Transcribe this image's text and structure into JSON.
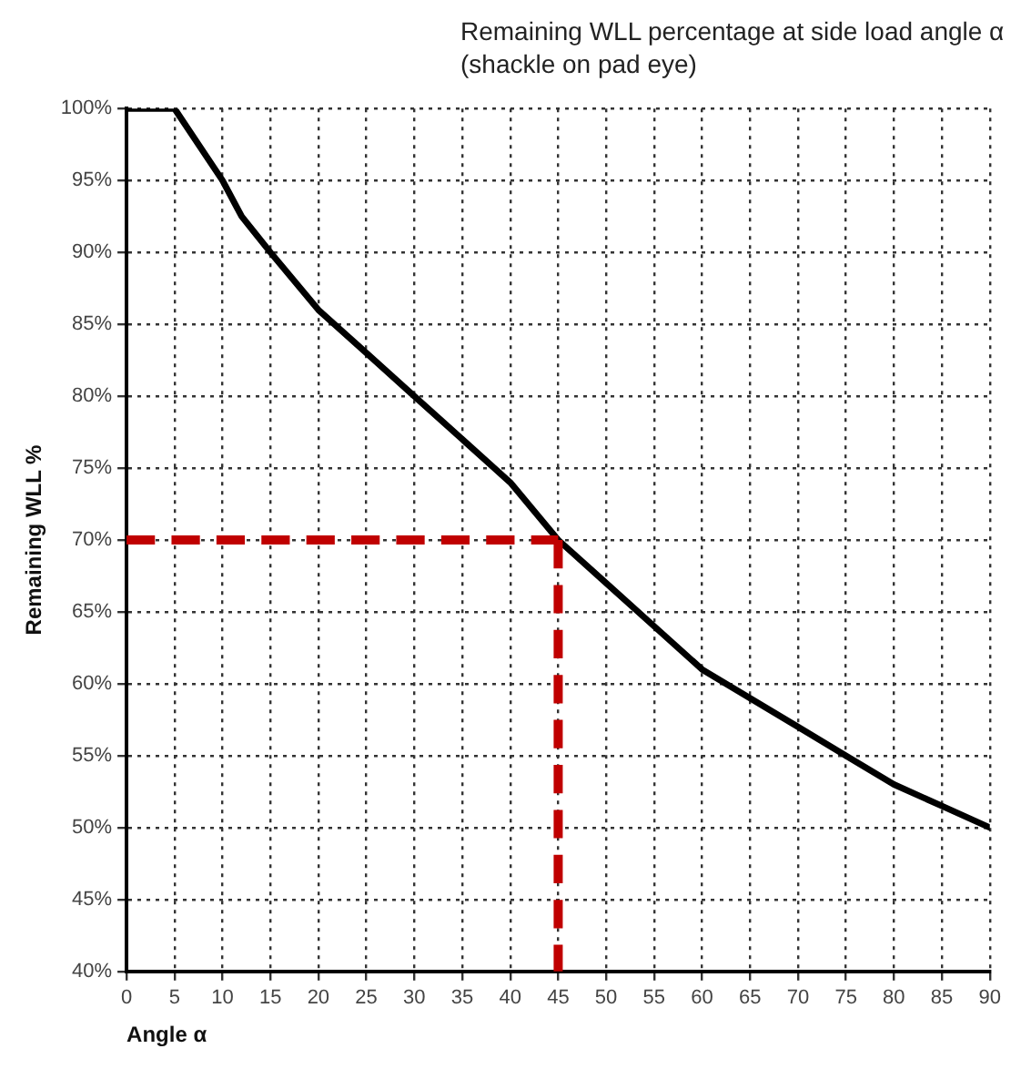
{
  "chart_data": {
    "type": "line",
    "title": "Remaining WLL percentage at side load angle α (shackle on pad eye)",
    "xlabel": "Angle α",
    "ylabel": "Remaining WLL %",
    "x": [
      0,
      5,
      10,
      12,
      15,
      20,
      25,
      30,
      35,
      40,
      45,
      50,
      55,
      60,
      65,
      70,
      75,
      80,
      85,
      90
    ],
    "series": [
      {
        "color": "#000000",
        "values": [
          100,
          100,
          95,
          92.5,
          90,
          86,
          83,
          80,
          77,
          74,
          70,
          67,
          64,
          61,
          59,
          57,
          55,
          53,
          51.5,
          50
        ]
      }
    ],
    "xlim": [
      0,
      90
    ],
    "xticks": [
      0,
      5,
      10,
      15,
      20,
      25,
      30,
      35,
      40,
      45,
      50,
      55,
      60,
      65,
      70,
      75,
      80,
      85,
      90
    ],
    "ylim": [
      40,
      100
    ],
    "yticks": [
      {
        "value": 40,
        "label": "40%"
      },
      {
        "value": 45,
        "label": "45%"
      },
      {
        "value": 50,
        "label": "50%"
      },
      {
        "value": 55,
        "label": "55%"
      },
      {
        "value": 60,
        "label": "60%"
      },
      {
        "value": 65,
        "label": "65%"
      },
      {
        "value": 70,
        "label": "70%"
      },
      {
        "value": 75,
        "label": "75%"
      },
      {
        "value": 80,
        "label": "80%"
      },
      {
        "value": 85,
        "label": "85%"
      },
      {
        "value": 90,
        "label": "90%"
      },
      {
        "value": 95,
        "label": "95%"
      },
      {
        "value": 100,
        "label": "100%"
      }
    ],
    "ref_lines": [
      {
        "axis": "y",
        "value": 70,
        "color": "#c00000",
        "line_style": "dashed"
      },
      {
        "axis": "x",
        "value": 45,
        "color": "#c00000",
        "line_style": "dashed"
      }
    ],
    "grid": true,
    "legend": false,
    "marker": "none",
    "line_style": "solid"
  }
}
